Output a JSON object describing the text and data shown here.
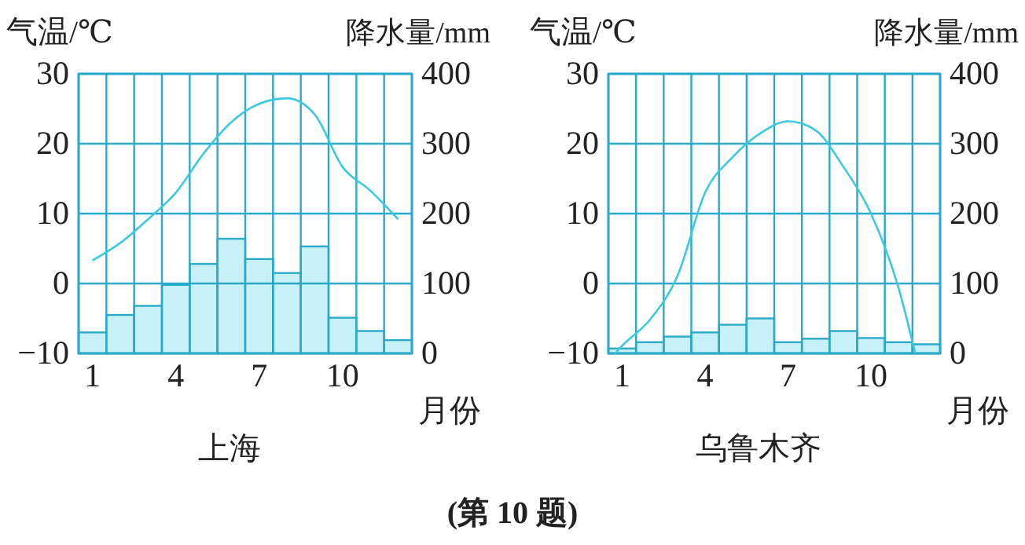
{
  "chart_data": [
    {
      "type": "bar",
      "title": "上海",
      "xlabel": "月份",
      "ylabel": "气温/℃",
      "y2label": "降水量/mm",
      "xlim": [
        0.5,
        12.5
      ],
      "xticks": [
        1,
        4,
        7,
        10
      ],
      "ylim": [
        -10,
        30
      ],
      "yticks": [
        -10,
        0,
        10,
        20,
        30
      ],
      "y2lim": [
        0,
        400
      ],
      "y2ticks": [
        0,
        100,
        200,
        300,
        400
      ],
      "grid": true,
      "annotations": [
        "(第 10 题)"
      ],
      "series": [
        {
          "axis": "y2",
          "color": "#c8f0f8",
          "x": [
            1,
            2,
            3,
            4,
            5,
            6,
            7,
            8,
            9,
            10,
            11,
            12
          ],
          "values": [
            30,
            55,
            68,
            98,
            128,
            164,
            135,
            115,
            153,
            51,
            32,
            19
          ]
        },
        {
          "type": "line",
          "axis": "y",
          "color": "#3cc8e0",
          "x": [
            1,
            2,
            3,
            4,
            5,
            6,
            7,
            8,
            9,
            10,
            11,
            12
          ],
          "values": [
            3.3,
            5.8,
            9.2,
            13,
            18.6,
            23.1,
            25.7,
            26.5,
            24.2,
            16.7,
            13.3,
            9.2
          ]
        }
      ]
    },
    {
      "type": "bar",
      "title": "乌鲁木齐",
      "xlabel": "月份",
      "ylabel": "气温/℃",
      "y2label": "降水量/mm",
      "xlim": [
        0.5,
        12.5
      ],
      "xticks": [
        1,
        4,
        7,
        10
      ],
      "ylim": [
        -10,
        30
      ],
      "yticks": [
        -10,
        0,
        10,
        20,
        30
      ],
      "y2lim": [
        0,
        400
      ],
      "y2ticks": [
        0,
        100,
        200,
        300,
        400
      ],
      "grid": true,
      "series": [
        {
          "axis": "y2",
          "color": "#c8f0f8",
          "x": [
            1,
            2,
            3,
            4,
            5,
            6,
            7,
            8,
            9,
            10,
            11,
            12
          ],
          "values": [
            7,
            16,
            24,
            30,
            41,
            50,
            16,
            21,
            32,
            22,
            16,
            13
          ]
        },
        {
          "type": "line",
          "axis": "y",
          "color": "#3cc8e0",
          "x": [
            0.75,
            1,
            2,
            3,
            4,
            5,
            6,
            7,
            8,
            9,
            10,
            11,
            11.6
          ],
          "values": [
            -10,
            -8.9,
            -5.2,
            1.1,
            13,
            18.1,
            21.5,
            23.2,
            21.9,
            16.7,
            10,
            -0.7,
            -10
          ]
        }
      ]
    }
  ]
}
